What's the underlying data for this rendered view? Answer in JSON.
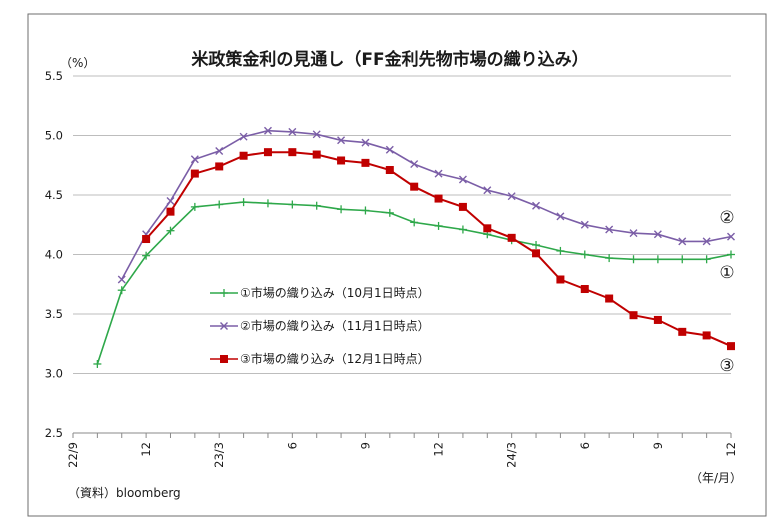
{
  "chart_data": {
    "type": "line",
    "title": "米政策金利の見通し（FF金利先物市場の織り込み）",
    "ylabel": "（%）",
    "xlabel": "（年/月）",
    "ylim": [
      2.5,
      5.5
    ],
    "yticks": [
      "2.5",
      "3.0",
      "3.5",
      "4.0",
      "4.5",
      "5.0",
      "5.5"
    ],
    "xtick_labels": [
      {
        "label": "22/9",
        "index": 0
      },
      {
        "label": "12",
        "index": 3
      },
      {
        "label": "23/3",
        "index": 6
      },
      {
        "label": "6",
        "index": 9
      },
      {
        "label": "9",
        "index": 12
      },
      {
        "label": "12",
        "index": 15
      },
      {
        "label": "24/3",
        "index": 18
      },
      {
        "label": "6",
        "index": 21
      },
      {
        "label": "9",
        "index": 24
      },
      {
        "label": "12",
        "index": 27
      }
    ],
    "x_count": 28,
    "grid": "horizontal",
    "legend_position": "center-left",
    "series": [
      {
        "name": "①市場の織り込み（10月1日時点）",
        "end_label": "①",
        "color": "#2ea84a",
        "marker": "plus",
        "start_index": 1,
        "values": [
          3.08,
          3.7,
          3.99,
          4.2,
          4.4,
          4.42,
          4.44,
          4.43,
          4.42,
          4.41,
          4.38,
          4.37,
          4.35,
          4.27,
          4.24,
          4.21,
          4.17,
          4.12,
          4.08,
          4.03,
          4.0,
          3.97,
          3.96,
          3.96,
          3.96,
          3.96,
          4.0
        ]
      },
      {
        "name": "②市場の織り込み（11月1日時点）",
        "end_label": "②",
        "color": "#7b5ea7",
        "marker": "x",
        "start_index": 2,
        "values": [
          3.79,
          4.17,
          4.45,
          4.8,
          4.87,
          4.99,
          5.04,
          5.03,
          5.01,
          4.96,
          4.94,
          4.88,
          4.76,
          4.68,
          4.63,
          4.54,
          4.49,
          4.41,
          4.32,
          4.25,
          4.21,
          4.18,
          4.17,
          4.11,
          4.11,
          4.15
        ]
      },
      {
        "name": "③市場の織り込み（12月1日時点）",
        "end_label": "③",
        "color": "#c00000",
        "marker": "square",
        "start_index": 3,
        "values": [
          4.13,
          4.36,
          4.68,
          4.74,
          4.83,
          4.86,
          4.86,
          4.84,
          4.79,
          4.77,
          4.71,
          4.57,
          4.47,
          4.4,
          4.22,
          4.14,
          4.01,
          3.79,
          3.71,
          3.63,
          3.49,
          3.45,
          3.35,
          3.32,
          3.23
        ]
      }
    ],
    "source": "（資料）bloomberg"
  }
}
